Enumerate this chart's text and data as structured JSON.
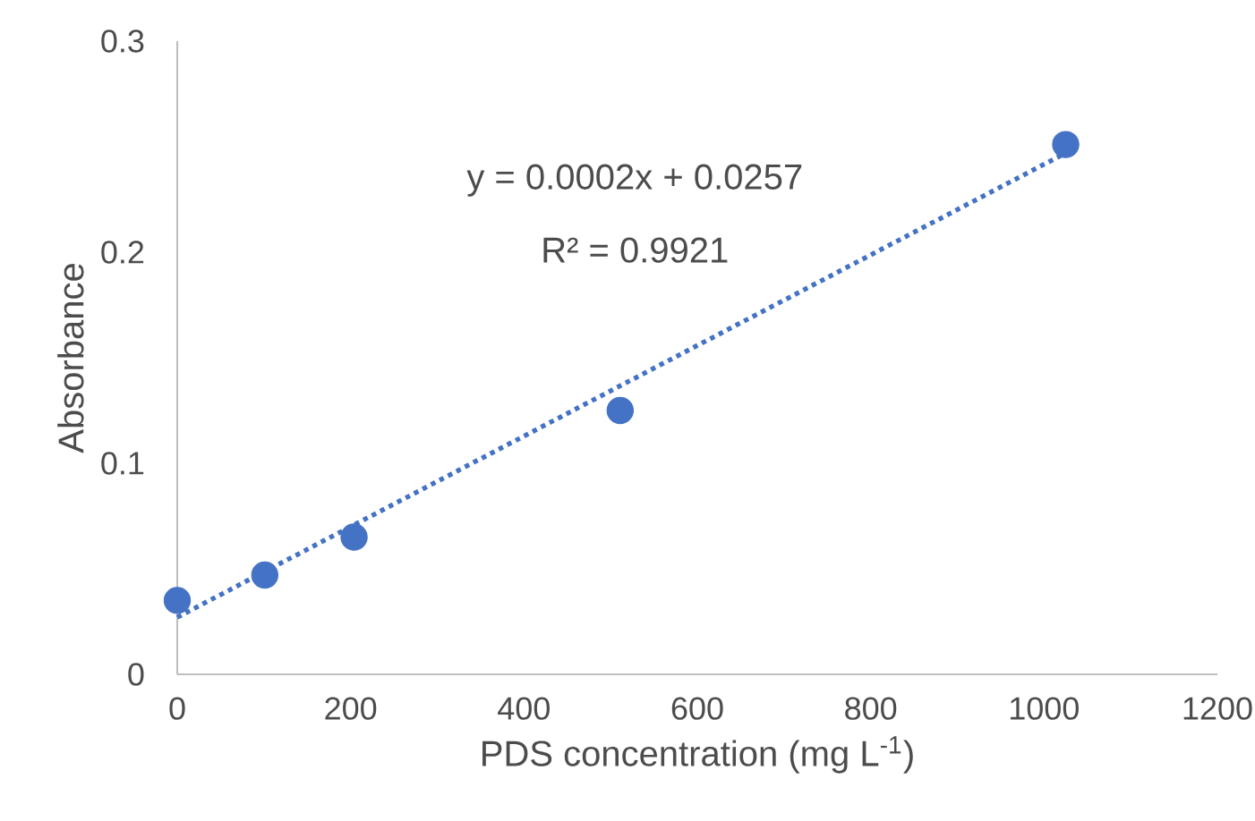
{
  "chart_data": {
    "type": "scatter",
    "xlabel": "PDS concentration (mg L$^{-1}$)",
    "ylabel": "Absorbance",
    "xlim": [
      0,
      1200
    ],
    "xticks": [
      0,
      200,
      400,
      600,
      800,
      1000,
      1200
    ],
    "ylim": [
      0,
      0.3
    ],
    "yticks": [
      0,
      0.1,
      0.2,
      0.3
    ],
    "annotations": [
      "y = 0.0002x + 0.0257",
      "R² = 0.9921"
    ],
    "series": [
      {
        "type": "scatter",
        "color": "#4472c4",
        "marker": "circle",
        "x": [
          0,
          101,
          204,
          511,
          1025
        ],
        "values": [
          0.035,
          0.047,
          0.065,
          0.125,
          0.251
        ]
      },
      {
        "type": "line",
        "color": "#4472c4",
        "line_style": "dotted",
        "marker": "none",
        "x": [
          0,
          1025
        ],
        "values": [
          0.027,
          0.247
        ]
      }
    ]
  }
}
